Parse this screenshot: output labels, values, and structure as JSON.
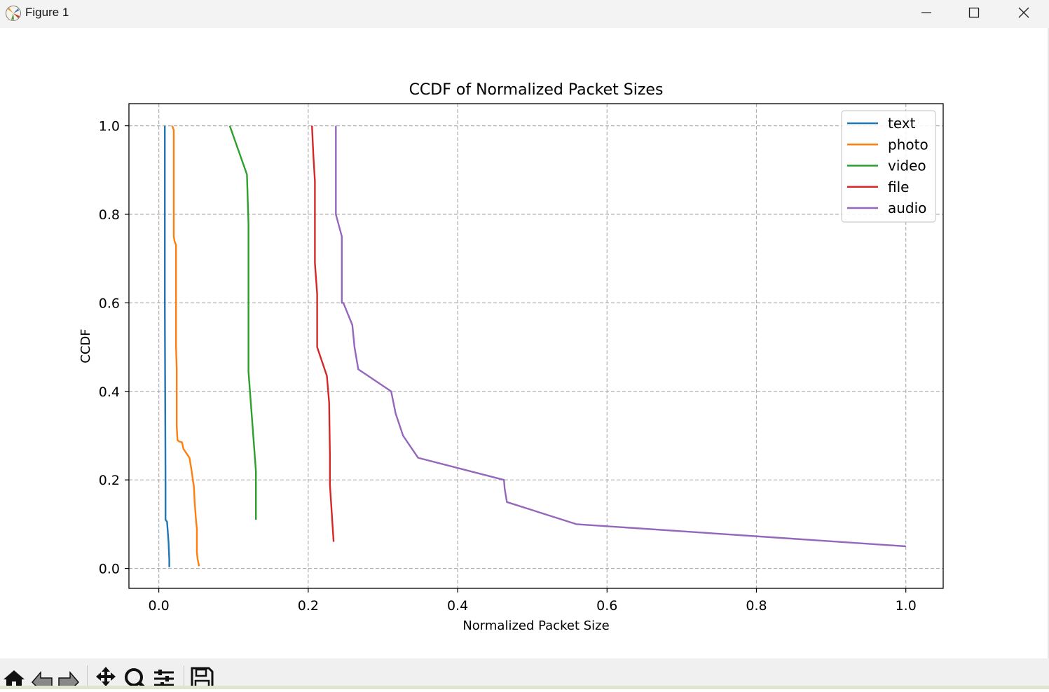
{
  "window": {
    "title": "Figure 1",
    "minimize_icon": "minimize-icon",
    "maximize_icon": "maximize-icon",
    "close_icon": "close-icon"
  },
  "toolbar": {
    "tools": [
      "home-icon",
      "back-arrow-icon",
      "forward-arrow-icon",
      "pan-icon",
      "zoom-icon",
      "configure-subplots-icon",
      "save-icon"
    ]
  },
  "chart_data": {
    "type": "line",
    "title": "CCDF of Normalized Packet Sizes",
    "xlabel": "Normalized Packet Size",
    "ylabel": "CCDF",
    "xlim": [
      -0.04,
      1.05
    ],
    "ylim": [
      -0.045,
      1.05
    ],
    "xticks": [
      0.0,
      0.2,
      0.4,
      0.6,
      0.8,
      1.0
    ],
    "xtick_labels": [
      "0.0",
      "0.2",
      "0.4",
      "0.6",
      "0.8",
      "1.0"
    ],
    "yticks": [
      0.0,
      0.2,
      0.4,
      0.6,
      0.8,
      1.0
    ],
    "ytick_labels": [
      "0.0",
      "0.2",
      "0.4",
      "0.6",
      "0.8",
      "1.0"
    ],
    "grid": true,
    "legend_position": "top-right",
    "series": [
      {
        "name": "text",
        "color": "#1f77b4",
        "x": [
          0.008,
          0.008,
          0.009,
          0.009,
          0.011,
          0.013,
          0.014,
          0.014
        ],
        "y": [
          1.0,
          0.6,
          0.2,
          0.11,
          0.105,
          0.06,
          0.02,
          0.003
        ]
      },
      {
        "name": "photo",
        "color": "#ff7f0e",
        "x": [
          0.018,
          0.02,
          0.02,
          0.021,
          0.023,
          0.023,
          0.024,
          0.024,
          0.025,
          0.027,
          0.031,
          0.033,
          0.041,
          0.044,
          0.046,
          0.047,
          0.048,
          0.05,
          0.051,
          0.051,
          0.052,
          0.054
        ],
        "y": [
          1.0,
          0.99,
          0.75,
          0.74,
          0.73,
          0.5,
          0.45,
          0.32,
          0.29,
          0.287,
          0.285,
          0.27,
          0.25,
          0.22,
          0.195,
          0.185,
          0.15,
          0.105,
          0.09,
          0.035,
          0.02,
          0.005
        ]
      },
      {
        "name": "video",
        "color": "#2ca02c",
        "x": [
          0.095,
          0.118,
          0.12,
          0.12,
          0.13,
          0.13
        ],
        "y": [
          1.0,
          0.89,
          0.78,
          0.445,
          0.22,
          0.11
        ]
      },
      {
        "name": "file",
        "color": "#d62728",
        "x": [
          0.205,
          0.207,
          0.209,
          0.209,
          0.212,
          0.212,
          0.225,
          0.228,
          0.229,
          0.229,
          0.234
        ],
        "y": [
          1.0,
          0.93,
          0.875,
          0.69,
          0.62,
          0.5,
          0.435,
          0.375,
          0.26,
          0.19,
          0.06
        ]
      },
      {
        "name": "audio",
        "color": "#9467bd",
        "x": [
          0.237,
          0.237,
          0.245,
          0.245,
          0.247,
          0.259,
          0.262,
          0.267,
          0.311,
          0.317,
          0.327,
          0.347,
          0.462,
          0.463,
          0.466,
          0.559,
          1.0
        ],
        "y": [
          1.0,
          0.8,
          0.75,
          0.6,
          0.6,
          0.55,
          0.5,
          0.45,
          0.4,
          0.35,
          0.3,
          0.25,
          0.2,
          0.18,
          0.15,
          0.1,
          0.05
        ]
      }
    ]
  }
}
